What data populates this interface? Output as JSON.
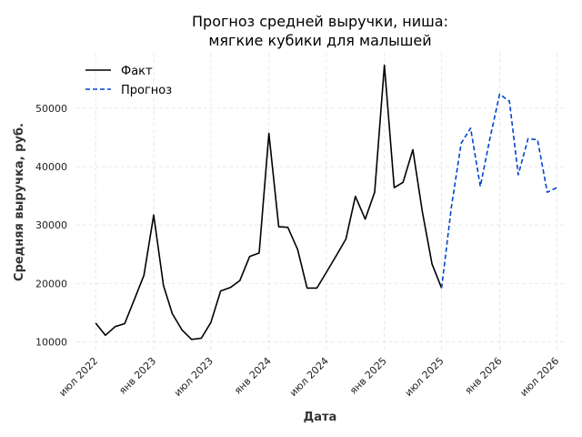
{
  "chart_data": {
    "type": "line",
    "title_line1": "Прогноз средней выручки, ниша:",
    "title_line2": "мягкие кубики для малышей",
    "xlabel": "Дата",
    "ylabel": "Средняя выручка, руб.",
    "ylim": [
      8500,
      59500
    ],
    "yticks": [
      10000,
      20000,
      30000,
      40000,
      50000
    ],
    "ytick_labels": [
      "10000",
      "20000",
      "30000",
      "40000",
      "50000"
    ],
    "xlim": [
      "2022-05-01",
      "2026-08-01"
    ],
    "xticks": [
      "2022-07-01",
      "2023-01-01",
      "2023-07-01",
      "2024-01-01",
      "2024-07-01",
      "2025-01-01",
      "2025-07-01",
      "2026-01-01",
      "2026-07-01"
    ],
    "xtick_labels": [
      "июл 2022",
      "янв 2023",
      "июл 2023",
      "янв 2024",
      "июл 2024",
      "янв 2025",
      "июл 2025",
      "янв 2026",
      "июл 2026"
    ],
    "grid": true,
    "legend_position": "top-left",
    "series": [
      {
        "name": "Факт",
        "color": "#000000",
        "style": "solid",
        "x": [
          "2022-07-01",
          "2022-08-01",
          "2022-09-01",
          "2022-10-01",
          "2022-11-01",
          "2022-12-01",
          "2023-01-01",
          "2023-02-01",
          "2023-03-01",
          "2023-04-01",
          "2023-05-01",
          "2023-06-01",
          "2023-07-01",
          "2023-08-01",
          "2023-09-01",
          "2023-10-01",
          "2023-11-01",
          "2023-12-01",
          "2024-01-01",
          "2024-02-01",
          "2024-03-01",
          "2024-04-01",
          "2024-05-01",
          "2024-06-01",
          "2024-07-01",
          "2024-08-01",
          "2024-09-01",
          "2024-10-01",
          "2024-11-01",
          "2024-12-01",
          "2025-01-01",
          "2025-02-01",
          "2025-03-01",
          "2025-04-01",
          "2025-05-01",
          "2025-06-01",
          "2025-07-01"
        ],
        "values": [
          13200,
          11100,
          12600,
          13100,
          17300,
          21400,
          31700,
          19600,
          14800,
          12000,
          10400,
          10600,
          13300,
          18700,
          19300,
          20500,
          24600,
          25200,
          45700,
          29700,
          29600,
          25800,
          19200,
          19200,
          21900,
          24700,
          27600,
          34900,
          31000,
          35600,
          57400,
          36400,
          37300,
          42900,
          32300,
          23300,
          19200
        ]
      },
      {
        "name": "Прогноз",
        "color": "#0044cc",
        "style": "dashed",
        "x": [
          "2025-07-01",
          "2025-08-01",
          "2025-09-01",
          "2025-10-01",
          "2025-11-01",
          "2025-12-01",
          "2026-01-01",
          "2026-02-01",
          "2026-03-01",
          "2026-04-01",
          "2026-05-01",
          "2026-06-01",
          "2026-07-01"
        ],
        "values": [
          19200,
          33000,
          44000,
          46600,
          36600,
          44800,
          52400,
          51200,
          38600,
          44800,
          44600,
          35600,
          36400
        ]
      }
    ]
  }
}
